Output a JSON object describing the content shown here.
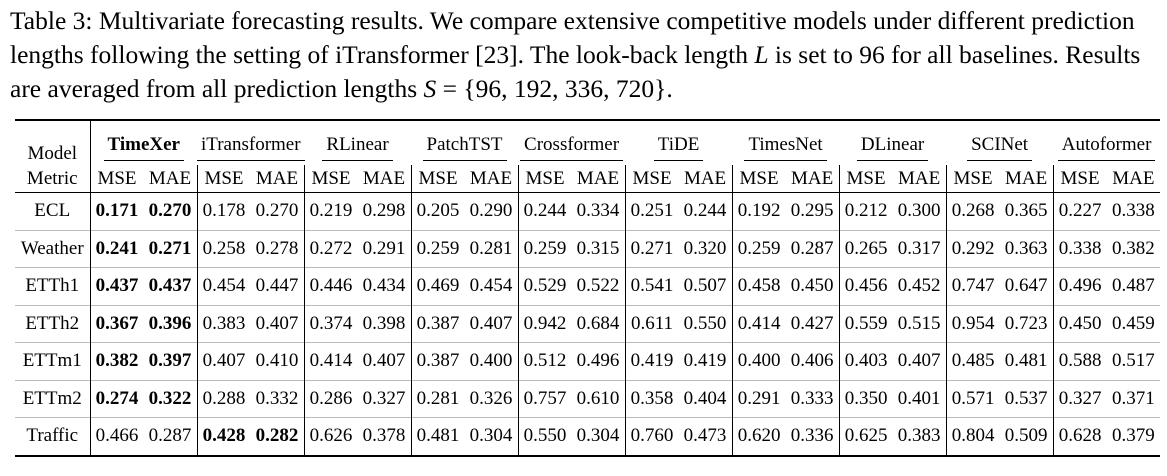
{
  "caption": [
    "Table 3: Multivariate forecasting results. We compare extensive competitive models under different prediction lengths following the setting of iTransformer [23]. The look-back length ",
    "L",
    " is set to 96 for all baselines. Results are averaged from all prediction lengths ",
    "S",
    " = {96, 192, 336, 720}."
  ],
  "table": {
    "model_label": "Model",
    "metric_label": "Metric",
    "models": [
      "TimeXer",
      "iTransformer",
      "RLinear",
      "PatchTST",
      "Crossformer",
      "TiDE",
      "TimesNet",
      "DLinear",
      "SCINet",
      "Autoformer"
    ],
    "bold_header_model": 0,
    "metrics": [
      "MSE",
      "MAE"
    ],
    "rows": [
      {
        "dataset": "ECL",
        "bold_model": 0,
        "values": [
          "0.171",
          "0.270",
          "0.178",
          "0.270",
          "0.219",
          "0.298",
          "0.205",
          "0.290",
          "0.244",
          "0.334",
          "0.251",
          "0.244",
          "0.192",
          "0.295",
          "0.212",
          "0.300",
          "0.268",
          "0.365",
          "0.227",
          "0.338"
        ]
      },
      {
        "dataset": "Weather",
        "bold_model": 0,
        "values": [
          "0.241",
          "0.271",
          "0.258",
          "0.278",
          "0.272",
          "0.291",
          "0.259",
          "0.281",
          "0.259",
          "0.315",
          "0.271",
          "0.320",
          "0.259",
          "0.287",
          "0.265",
          "0.317",
          "0.292",
          "0.363",
          "0.338",
          "0.382"
        ]
      },
      {
        "dataset": "ETTh1",
        "bold_model": 0,
        "values": [
          "0.437",
          "0.437",
          "0.454",
          "0.447",
          "0.446",
          "0.434",
          "0.469",
          "0.454",
          "0.529",
          "0.522",
          "0.541",
          "0.507",
          "0.458",
          "0.450",
          "0.456",
          "0.452",
          "0.747",
          "0.647",
          "0.496",
          "0.487"
        ]
      },
      {
        "dataset": "ETTh2",
        "bold_model": 0,
        "values": [
          "0.367",
          "0.396",
          "0.383",
          "0.407",
          "0.374",
          "0.398",
          "0.387",
          "0.407",
          "0.942",
          "0.684",
          "0.611",
          "0.550",
          "0.414",
          "0.427",
          "0.559",
          "0.515",
          "0.954",
          "0.723",
          "0.450",
          "0.459"
        ]
      },
      {
        "dataset": "ETTm1",
        "bold_model": 0,
        "values": [
          "0.382",
          "0.397",
          "0.407",
          "0.410",
          "0.414",
          "0.407",
          "0.387",
          "0.400",
          "0.512",
          "0.496",
          "0.419",
          "0.419",
          "0.400",
          "0.406",
          "0.403",
          "0.407",
          "0.485",
          "0.481",
          "0.588",
          "0.517"
        ]
      },
      {
        "dataset": "ETTm2",
        "bold_model": 0,
        "values": [
          "0.274",
          "0.322",
          "0.288",
          "0.332",
          "0.286",
          "0.327",
          "0.281",
          "0.326",
          "0.757",
          "0.610",
          "0.358",
          "0.404",
          "0.291",
          "0.333",
          "0.350",
          "0.401",
          "0.571",
          "0.537",
          "0.327",
          "0.371"
        ]
      },
      {
        "dataset": "Traffic",
        "bold_model": 1,
        "values": [
          "0.466",
          "0.287",
          "0.428",
          "0.282",
          "0.626",
          "0.378",
          "0.481",
          "0.304",
          "0.550",
          "0.304",
          "0.760",
          "0.473",
          "0.620",
          "0.336",
          "0.625",
          "0.383",
          "0.804",
          "0.509",
          "0.628",
          "0.379"
        ]
      }
    ]
  }
}
